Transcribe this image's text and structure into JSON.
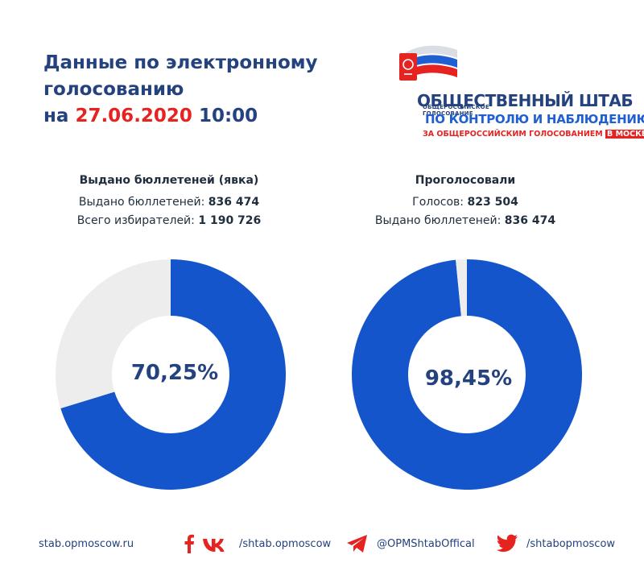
{
  "header": {
    "title_line1": "Данные по электронному",
    "title_line2": "голосованию",
    "title_prefix": "на",
    "date": "27.06.2020",
    "time": "10:00"
  },
  "logo": {
    "small_line1": "ОБЩЕРОССИЙСКОЕ",
    "small_line2": "ГОЛОСОВАНИЕ",
    "line1": "ОБЩЕСТВЕННЫЙ ШТАБ",
    "line2": "ПО КОНТРОЛЮ И НАБЛЮДЕНИЮ",
    "line3": "ЗА ОБЩЕРОССИЙСКИМ ГОЛОСОВАНИЕМ",
    "line3_badge": "В МОСКВЕ"
  },
  "chart_data": [
    {
      "type": "pie",
      "title": "Выдано бюллетеней (явка)",
      "stats": [
        {
          "label": "Выдано бюллетеней:",
          "value": "836 474"
        },
        {
          "label": "Всего избирателей:",
          "value": "1 190 726"
        }
      ],
      "center_label": "70,25%",
      "values": [
        70.25,
        29.75
      ],
      "colors": [
        "#1455cc",
        "#ededed"
      ]
    },
    {
      "type": "pie",
      "title": "Проголосовали",
      "stats": [
        {
          "label": "Голосов:",
          "value": "823 504"
        },
        {
          "label": "Выдано бюллетеней:",
          "value": "836 474"
        }
      ],
      "center_label": "98,45%",
      "values": [
        98.45,
        1.55
      ],
      "colors": [
        "#1455cc",
        "#ededed"
      ]
    }
  ],
  "footer": {
    "site": "stab.opmoscow.ru",
    "social1": "/shtab.opmoscow",
    "social2": "@OPMShtabOffical",
    "social3": "/shtabopmoscow"
  },
  "icons": [
    "facebook-icon",
    "vk-icon",
    "telegram-icon",
    "twitter-icon"
  ]
}
